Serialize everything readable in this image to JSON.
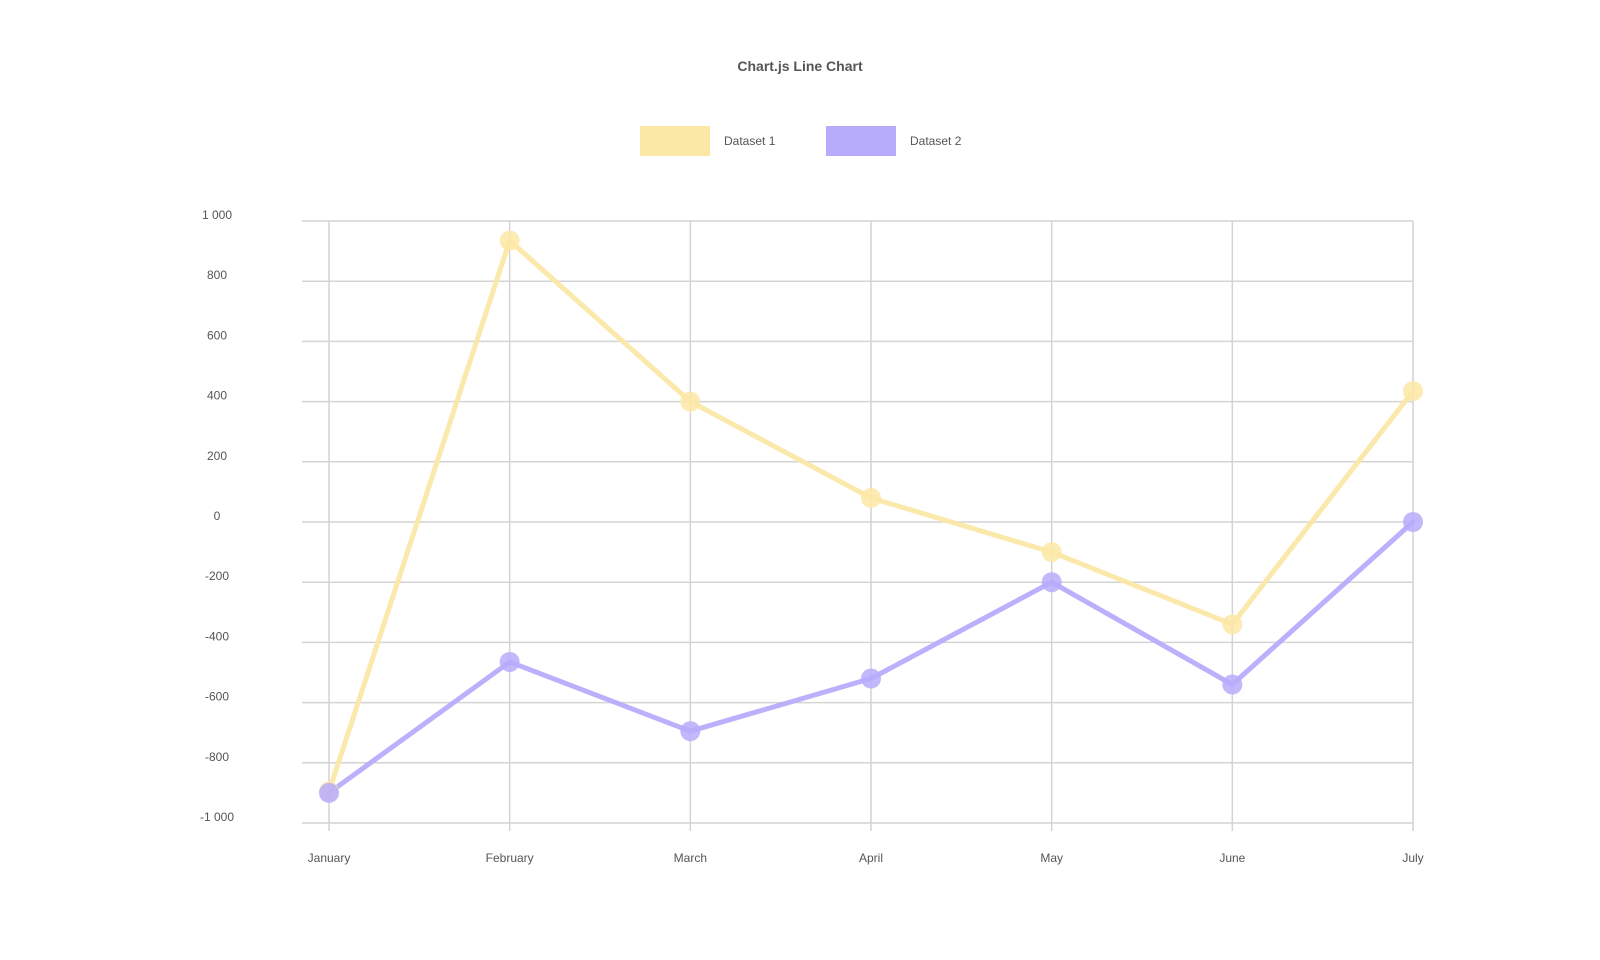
{
  "chart_data": {
    "type": "line",
    "title": "Chart.js Line Chart",
    "categories": [
      "January",
      "February",
      "March",
      "April",
      "May",
      "June",
      "July"
    ],
    "series": [
      {
        "name": "Dataset 1",
        "color": "#fbe7a6",
        "values": [
          -895,
          935,
          400,
          80,
          -100,
          -340,
          435
        ]
      },
      {
        "name": "Dataset 2",
        "color": "#b7acfb",
        "values": [
          -900,
          -465,
          -695,
          -520,
          -200,
          -540,
          0
        ]
      }
    ],
    "ylim": [
      -1000,
      1000
    ],
    "yticks": [
      1000,
      800,
      600,
      400,
      200,
      0,
      -200,
      -400,
      -600,
      -800,
      -1000
    ],
    "ytick_labels": [
      "1 000",
      "800",
      "600",
      "400",
      "200",
      "0",
      "-200",
      "-400",
      "-600",
      "-800",
      "-1 000"
    ],
    "grid": true,
    "legend_position": "top"
  }
}
